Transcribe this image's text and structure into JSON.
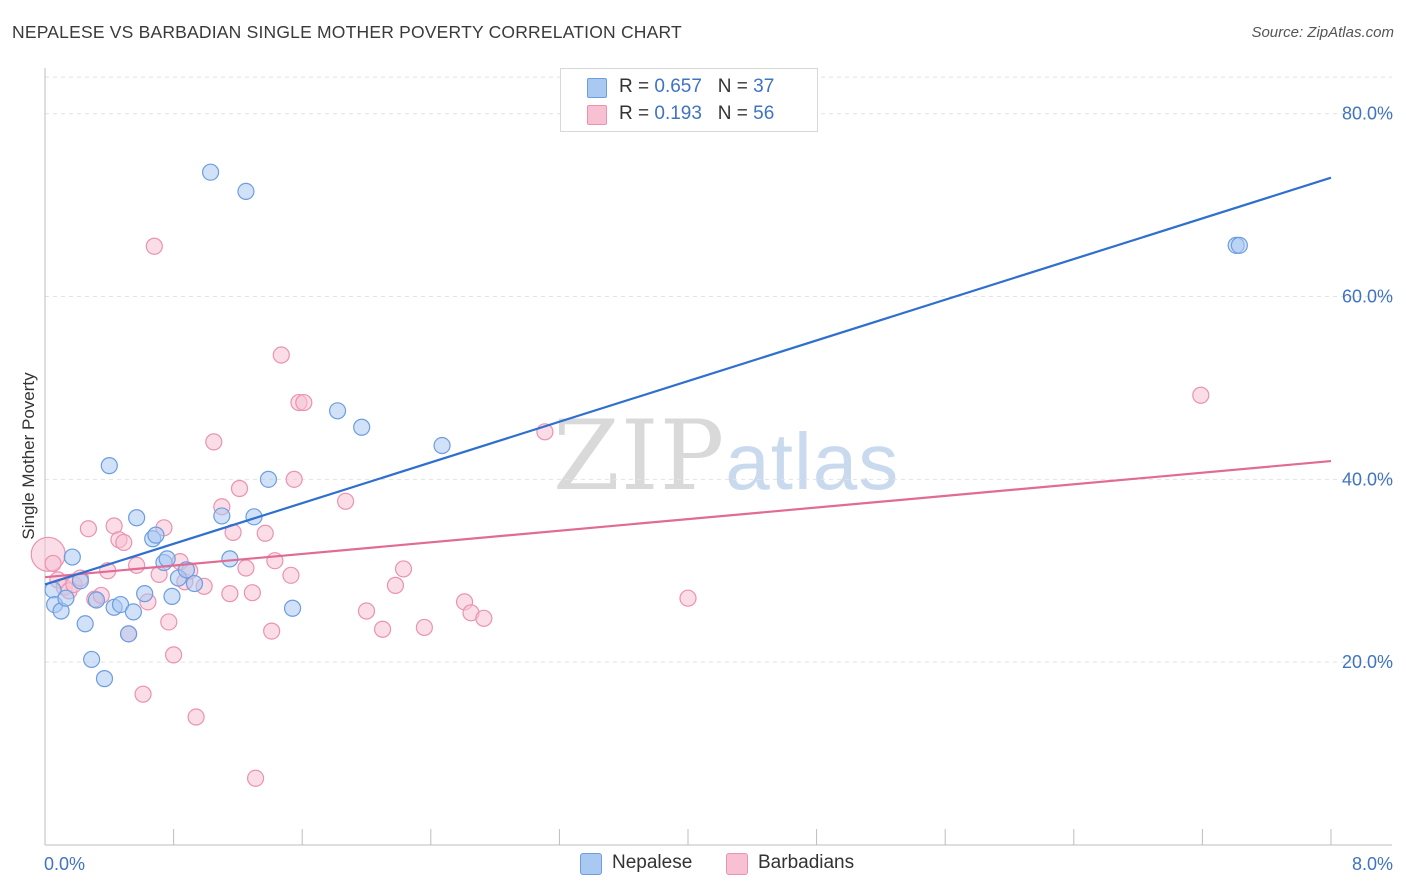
{
  "title": "NEPALESE VS BARBADIAN SINGLE MOTHER POVERTY CORRELATION CHART",
  "source": "Source: ZipAtlas.com",
  "watermark": {
    "zip": "ZIP",
    "atlas": "atlas"
  },
  "legend": {
    "rows": [
      {
        "r_label": "R = ",
        "r_value": "0.657",
        "n_label": "N = ",
        "n_value": "37"
      },
      {
        "r_label": "R = ",
        "r_value": "0.193",
        "n_label": "N = ",
        "n_value": "56"
      }
    ]
  },
  "bottom_legend": {
    "nepalese": "Nepalese",
    "barbadians": "Barbadians"
  },
  "chart_data": {
    "type": "scatter",
    "title": "NEPALESE VS BARBADIAN SINGLE MOTHER POVERTY CORRELATION CHART",
    "xlabel": "",
    "ylabel": "Single Mother Poverty",
    "xlim": [
      0,
      8
    ],
    "ylim": [
      0,
      85
    ],
    "x_tick_labels": [
      {
        "value": 0,
        "label": "0.0%"
      },
      {
        "value": 8,
        "label": "8.0%"
      }
    ],
    "y_tick_labels": [
      {
        "value": 20,
        "label": "20.0%"
      },
      {
        "value": 40,
        "label": "40.0%"
      },
      {
        "value": 60,
        "label": "60.0%"
      },
      {
        "value": 80,
        "label": "80.0%"
      }
    ],
    "grid": true,
    "legend_position": "top-center",
    "colors": {
      "nepalese_fill": "#a9c8f2",
      "nepalese_stroke": "#6d9de0",
      "nepalese_line": "#2f6fce",
      "barbadian_fill": "#f7c1d3",
      "barbadian_stroke": "#ea92b1",
      "barbadian_line": "#e06b95"
    },
    "series": [
      {
        "name": "Nepalese",
        "r": 0.657,
        "n": 37,
        "trend": {
          "x": [
            0,
            8
          ],
          "y": [
            28.5,
            73
          ]
        },
        "points": [
          [
            0.05,
            27.9
          ],
          [
            0.06,
            26.3
          ],
          [
            0.1,
            25.6
          ],
          [
            0.13,
            27.0
          ],
          [
            0.17,
            31.5
          ],
          [
            0.22,
            28.9
          ],
          [
            0.25,
            24.2
          ],
          [
            0.29,
            20.3
          ],
          [
            0.32,
            26.8
          ],
          [
            0.37,
            18.2
          ],
          [
            0.4,
            41.5
          ],
          [
            0.43,
            26.0
          ],
          [
            0.47,
            26.3
          ],
          [
            0.52,
            23.1
          ],
          [
            0.55,
            25.5
          ],
          [
            0.57,
            35.8
          ],
          [
            0.62,
            27.5
          ],
          [
            0.67,
            33.5
          ],
          [
            0.69,
            33.9
          ],
          [
            0.74,
            30.9
          ],
          [
            0.76,
            31.3
          ],
          [
            0.79,
            27.2
          ],
          [
            0.83,
            29.2
          ],
          [
            0.88,
            30.1
          ],
          [
            0.93,
            28.6
          ],
          [
            1.03,
            73.6
          ],
          [
            1.1,
            36.0
          ],
          [
            1.15,
            31.3
          ],
          [
            1.25,
            71.5
          ],
          [
            1.3,
            35.9
          ],
          [
            1.39,
            40.0
          ],
          [
            1.54,
            25.9
          ],
          [
            1.82,
            47.5
          ],
          [
            1.97,
            45.7
          ],
          [
            2.47,
            43.7
          ],
          [
            7.41,
            65.6
          ],
          [
            7.43,
            65.6
          ]
        ]
      },
      {
        "name": "Barbadians",
        "r": 0.193,
        "n": 56,
        "trend": {
          "x": [
            0,
            8
          ],
          "y": [
            29.3,
            42
          ]
        },
        "points": [
          [
            0.02,
            31.8
          ],
          [
            0.05,
            30.8
          ],
          [
            0.08,
            29.0
          ],
          [
            0.12,
            28.2
          ],
          [
            0.15,
            27.8
          ],
          [
            0.18,
            28.5
          ],
          [
            0.22,
            29.2
          ],
          [
            0.27,
            34.6
          ],
          [
            0.31,
            26.9
          ],
          [
            0.35,
            27.3
          ],
          [
            0.39,
            30.0
          ],
          [
            0.43,
            34.9
          ],
          [
            0.46,
            33.4
          ],
          [
            0.49,
            33.1
          ],
          [
            0.52,
            23.1
          ],
          [
            0.57,
            30.6
          ],
          [
            0.61,
            16.5
          ],
          [
            0.64,
            26.6
          ],
          [
            0.68,
            65.5
          ],
          [
            0.71,
            29.6
          ],
          [
            0.74,
            34.7
          ],
          [
            0.77,
            24.4
          ],
          [
            0.8,
            20.8
          ],
          [
            0.84,
            31.0
          ],
          [
            0.87,
            28.8
          ],
          [
            0.9,
            30.0
          ],
          [
            0.94,
            14.0
          ],
          [
            0.99,
            28.3
          ],
          [
            1.05,
            44.1
          ],
          [
            1.1,
            37.0
          ],
          [
            1.15,
            27.5
          ],
          [
            1.17,
            34.2
          ],
          [
            1.21,
            39.0
          ],
          [
            1.25,
            30.3
          ],
          [
            1.29,
            27.6
          ],
          [
            1.31,
            7.3
          ],
          [
            1.37,
            34.1
          ],
          [
            1.41,
            23.4
          ],
          [
            1.43,
            31.1
          ],
          [
            1.47,
            53.6
          ],
          [
            1.53,
            29.5
          ],
          [
            1.55,
            40.0
          ],
          [
            1.58,
            48.4
          ],
          [
            1.61,
            48.4
          ],
          [
            1.87,
            37.6
          ],
          [
            2.0,
            25.6
          ],
          [
            2.1,
            23.6
          ],
          [
            2.18,
            28.4
          ],
          [
            2.23,
            30.2
          ],
          [
            2.36,
            23.8
          ],
          [
            2.61,
            26.6
          ],
          [
            2.65,
            25.4
          ],
          [
            2.73,
            24.8
          ],
          [
            3.11,
            45.2
          ],
          [
            4.0,
            27.0
          ],
          [
            7.19,
            49.2
          ]
        ]
      }
    ]
  }
}
